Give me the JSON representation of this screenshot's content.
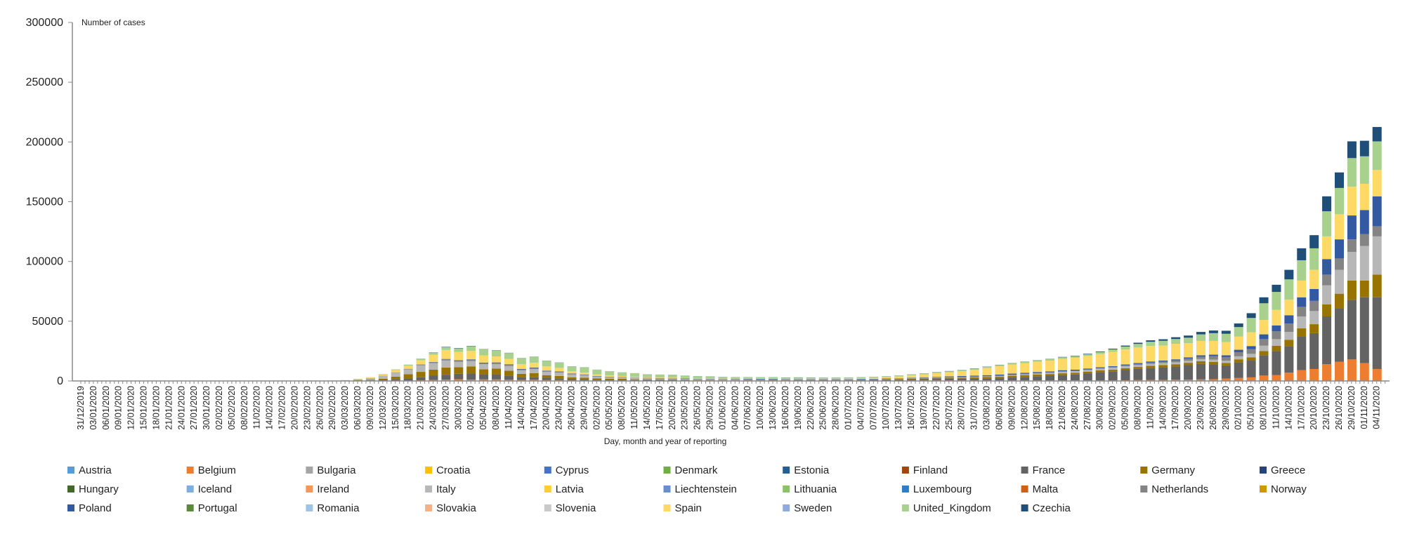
{
  "chart_data": {
    "type": "bar",
    "stacked": true,
    "ylabel": "Number of cases",
    "xlabel": "Day, month and year of reporting",
    "ylim": [
      0,
      300000
    ],
    "yticks": [
      0,
      50000,
      100000,
      150000,
      200000,
      250000,
      300000
    ],
    "grid": false,
    "legend_position": "bottom",
    "categories": [
      "31/12/2019",
      "03/01/2020",
      "06/01/2020",
      "09/01/2020",
      "12/01/2020",
      "15/01/2020",
      "18/01/2020",
      "21/01/2020",
      "24/01/2020",
      "27/01/2020",
      "30/01/2020",
      "02/02/2020",
      "05/02/2020",
      "08/02/2020",
      "11/02/2020",
      "14/02/2020",
      "17/02/2020",
      "20/02/2020",
      "23/02/2020",
      "26/02/2020",
      "29/02/2020",
      "03/03/2020",
      "06/03/2020",
      "09/03/2020",
      "12/03/2020",
      "15/03/2020",
      "18/03/2020",
      "21/03/2020",
      "24/03/2020",
      "27/03/2020",
      "30/03/2020",
      "02/04/2020",
      "05/04/2020",
      "08/04/2020",
      "11/04/2020",
      "14/04/2020",
      "17/04/2020",
      "20/04/2020",
      "23/04/2020",
      "26/04/2020",
      "29/04/2020",
      "02/05/2020",
      "05/05/2020",
      "08/05/2020",
      "11/05/2020",
      "14/05/2020",
      "17/05/2020",
      "20/05/2020",
      "23/05/2020",
      "26/05/2020",
      "29/05/2020",
      "01/06/2020",
      "04/06/2020",
      "07/06/2020",
      "10/06/2020",
      "13/06/2020",
      "16/06/2020",
      "19/06/2020",
      "22/06/2020",
      "25/06/2020",
      "28/06/2020",
      "01/07/2020",
      "04/07/2020",
      "07/07/2020",
      "10/07/2020",
      "13/07/2020",
      "16/07/2020",
      "19/07/2020",
      "22/07/2020",
      "25/07/2020",
      "28/07/2020",
      "31/07/2020",
      "03/08/2020",
      "06/08/2020",
      "09/08/2020",
      "12/08/2020",
      "15/08/2020",
      "18/08/2020",
      "21/08/2020",
      "24/08/2020",
      "27/08/2020",
      "30/08/2020",
      "02/09/2020",
      "05/09/2020",
      "08/09/2020",
      "11/09/2020",
      "14/09/2020",
      "17/09/2020",
      "20/09/2020",
      "23/09/2020",
      "26/09/2020",
      "29/09/2020",
      "02/10/2020",
      "05/10/2020",
      "08/10/2020",
      "11/10/2020",
      "14/10/2020",
      "17/10/2020",
      "20/10/2020",
      "23/10/2020",
      "26/10/2020",
      "29/10/2020",
      "01/11/2020",
      "04/11/2020"
    ],
    "legend": [
      {
        "name": "Austria",
        "color": "#5B9BD5"
      },
      {
        "name": "Belgium",
        "color": "#ED7D31"
      },
      {
        "name": "Bulgaria",
        "color": "#A5A5A5"
      },
      {
        "name": "Croatia",
        "color": "#FFC000"
      },
      {
        "name": "Cyprus",
        "color": "#4472C4"
      },
      {
        "name": "Denmark",
        "color": "#70AD47"
      },
      {
        "name": "Estonia",
        "color": "#255E91"
      },
      {
        "name": "Finland",
        "color": "#9E480E"
      },
      {
        "name": "France",
        "color": "#636363"
      },
      {
        "name": "Germany",
        "color": "#997300"
      },
      {
        "name": "Greece",
        "color": "#264478"
      },
      {
        "name": "Hungary",
        "color": "#43682B"
      },
      {
        "name": "Iceland",
        "color": "#7CAFDD"
      },
      {
        "name": "Ireland",
        "color": "#F1975A"
      },
      {
        "name": "Italy",
        "color": "#B7B7B7"
      },
      {
        "name": "Latvia",
        "color": "#FFCD33"
      },
      {
        "name": "Liechtenstein",
        "color": "#698ED0"
      },
      {
        "name": "Lithuania",
        "color": "#8CC168"
      },
      {
        "name": "Luxembourg",
        "color": "#327DC2"
      },
      {
        "name": "Malta",
        "color": "#D26012"
      },
      {
        "name": "Netherlands",
        "color": "#848484"
      },
      {
        "name": "Norway",
        "color": "#CC9A00"
      },
      {
        "name": "Poland",
        "color": "#335AA1"
      },
      {
        "name": "Portugal",
        "color": "#5A8A39"
      },
      {
        "name": "Romania",
        "color": "#9DC3E6"
      },
      {
        "name": "Slovakia",
        "color": "#F4B183"
      },
      {
        "name": "Slovenia",
        "color": "#C9C9C9"
      },
      {
        "name": "Spain",
        "color": "#FFD966"
      },
      {
        "name": "Sweden",
        "color": "#8FAADC"
      },
      {
        "name": "United_Kingdom",
        "color": "#A9D18E"
      },
      {
        "name": "Czechia",
        "color": "#1F4E79"
      }
    ],
    "series": [
      {
        "name": "Belgium",
        "values": [
          0,
          0,
          0,
          0,
          0,
          0,
          0,
          0,
          0,
          0,
          0,
          0,
          0,
          0,
          0,
          0,
          0,
          0,
          0,
          0,
          0,
          0,
          0,
          0,
          100,
          200,
          300,
          600,
          900,
          1200,
          1500,
          1200,
          1300,
          1300,
          1000,
          900,
          1000,
          700,
          700,
          500,
          400,
          300,
          300,
          250,
          200,
          200,
          150,
          150,
          150,
          150,
          150,
          100,
          100,
          100,
          100,
          100,
          100,
          100,
          100,
          100,
          100,
          150,
          150,
          200,
          250,
          300,
          400,
          500,
          500,
          500,
          500,
          500,
          450,
          450,
          400,
          400,
          400,
          400,
          400,
          400,
          400,
          400,
          500,
          600,
          700,
          800,
          900,
          1000,
          1200,
          1300,
          1500,
          2000,
          2500,
          3000,
          4500,
          5000,
          7000,
          9000,
          10000,
          14000,
          16000,
          18000,
          15000,
          10000
        ]
      },
      {
        "name": "France",
        "values": [
          0,
          0,
          0,
          0,
          0,
          0,
          0,
          0,
          0,
          0,
          0,
          0,
          0,
          0,
          0,
          0,
          0,
          0,
          0,
          0,
          0,
          50,
          300,
          400,
          800,
          1400,
          1800,
          2500,
          3500,
          4000,
          4500,
          5000,
          4000,
          4000,
          3500,
          2500,
          2000,
          2000,
          1500,
          1000,
          1000,
          800,
          800,
          600,
          500,
          400,
          400,
          400,
          400,
          300,
          300,
          300,
          400,
          400,
          400,
          400,
          400,
          500,
          500,
          500,
          500,
          500,
          600,
          600,
          700,
          800,
          1000,
          1000,
          1200,
          1300,
          1400,
          1500,
          1800,
          2000,
          2500,
          3000,
          3500,
          4000,
          4500,
          5000,
          6000,
          7000,
          7500,
          8500,
          9500,
          10000,
          10500,
          11000,
          12000,
          13000,
          12000,
          11000,
          13000,
          14000,
          17000,
          20000,
          22000,
          28000,
          30000,
          40000,
          45000,
          50000,
          55000,
          60000
        ]
      },
      {
        "name": "Germany",
        "values": [
          0,
          0,
          0,
          0,
          0,
          0,
          0,
          0,
          0,
          0,
          0,
          0,
          0,
          0,
          0,
          0,
          0,
          0,
          0,
          0,
          100,
          150,
          300,
          500,
          900,
          2000,
          3500,
          4500,
          5000,
          6000,
          5500,
          6000,
          4500,
          5000,
          4000,
          2500,
          3500,
          2000,
          2000,
          1500,
          1300,
          1000,
          800,
          900,
          700,
          700,
          600,
          600,
          500,
          400,
          400,
          400,
          300,
          400,
          500,
          600,
          500,
          400,
          400,
          400,
          400,
          400,
          400,
          400,
          500,
          500,
          600,
          700,
          800,
          900,
          900,
          1000,
          1000,
          1200,
          1400,
          1500,
          1500,
          1400,
          1500,
          1400,
          1400,
          1400,
          1500,
          1500,
          1500,
          1800,
          1900,
          2000,
          2000,
          2200,
          2500,
          2000,
          2600,
          2800,
          3500,
          4500,
          5500,
          7000,
          7500,
          10000,
          12000,
          16000,
          14000,
          19000
        ]
      },
      {
        "name": "Italy",
        "values": [
          0,
          0,
          0,
          0,
          0,
          0,
          0,
          0,
          0,
          0,
          0,
          0,
          0,
          0,
          0,
          0,
          0,
          0,
          0,
          100,
          250,
          500,
          900,
          1500,
          2500,
          3300,
          4000,
          5500,
          5500,
          5900,
          4500,
          4500,
          4300,
          3800,
          4000,
          3000,
          3500,
          3000,
          2700,
          2400,
          2000,
          1500,
          1200,
          1100,
          900,
          800,
          700,
          600,
          600,
          400,
          400,
          300,
          300,
          300,
          300,
          250,
          200,
          200,
          200,
          200,
          200,
          200,
          200,
          200,
          200,
          200,
          200,
          250,
          250,
          250,
          300,
          350,
          400,
          450,
          500,
          600,
          800,
          1000,
          1300,
          1300,
          1400,
          1500,
          1600,
          1700,
          1600,
          1800,
          1700,
          1600,
          1700,
          1800,
          1900,
          2000,
          2500,
          2900,
          4500,
          5500,
          6500,
          10000,
          11000,
          16000,
          20000,
          24000,
          29000,
          32000
        ]
      },
      {
        "name": "Netherlands",
        "values": [
          0,
          0,
          0,
          0,
          0,
          0,
          0,
          0,
          0,
          0,
          0,
          0,
          0,
          0,
          0,
          0,
          0,
          0,
          0,
          0,
          0,
          0,
          0,
          50,
          150,
          300,
          500,
          600,
          800,
          1000,
          1000,
          1000,
          900,
          1000,
          1000,
          800,
          900,
          700,
          700,
          500,
          400,
          300,
          200,
          200,
          150,
          150,
          150,
          150,
          100,
          100,
          100,
          100,
          100,
          100,
          100,
          100,
          100,
          100,
          100,
          100,
          100,
          100,
          100,
          100,
          150,
          150,
          200,
          250,
          300,
          350,
          400,
          450,
          500,
          550,
          550,
          500,
          500,
          500,
          500,
          500,
          500,
          600,
          700,
          800,
          900,
          1000,
          1200,
          1500,
          1800,
          2000,
          2800,
          3000,
          3500,
          4000,
          5500,
          6500,
          7000,
          8000,
          8500,
          9000,
          9500,
          10500,
          10000,
          8500
        ]
      },
      {
        "name": "Poland",
        "values": [
          0,
          0,
          0,
          0,
          0,
          0,
          0,
          0,
          0,
          0,
          0,
          0,
          0,
          0,
          0,
          0,
          0,
          0,
          0,
          0,
          0,
          0,
          0,
          10,
          20,
          40,
          60,
          100,
          200,
          300,
          300,
          400,
          400,
          400,
          400,
          400,
          400,
          300,
          300,
          300,
          300,
          300,
          300,
          300,
          300,
          300,
          300,
          300,
          300,
          300,
          300,
          300,
          400,
          400,
          400,
          300,
          300,
          300,
          300,
          300,
          300,
          300,
          300,
          300,
          300,
          300,
          300,
          400,
          400,
          500,
          600,
          600,
          700,
          700,
          800,
          800,
          800,
          700,
          800,
          800,
          700,
          600,
          600,
          700,
          800,
          900,
          900,
          1000,
          1000,
          1200,
          1300,
          1500,
          2000,
          2500,
          4000,
          5000,
          7000,
          8000,
          10000,
          13000,
          16000,
          20000,
          20000,
          25000
        ]
      },
      {
        "name": "Spain",
        "values": [
          0,
          0,
          0,
          0,
          0,
          0,
          0,
          0,
          0,
          0,
          0,
          0,
          0,
          0,
          0,
          0,
          0,
          0,
          0,
          0,
          0,
          50,
          200,
          500,
          1000,
          1800,
          2500,
          3500,
          6000,
          7500,
          7000,
          7000,
          6000,
          5000,
          4500,
          4000,
          4000,
          3500,
          3000,
          2000,
          1500,
          1200,
          1000,
          800,
          700,
          500,
          500,
          500,
          400,
          400,
          400,
          400,
          300,
          300,
          300,
          300,
          300,
          300,
          400,
          400,
          400,
          500,
          600,
          800,
          1000,
          1500,
          2000,
          2500,
          3000,
          3500,
          4000,
          5000,
          6000,
          7000,
          7500,
          8000,
          8500,
          9000,
          9500,
          10000,
          10500,
          11000,
          12000,
          12500,
          13000,
          13000,
          12500,
          13000,
          12000,
          12000,
          11500,
          11000,
          11000,
          11500,
          12000,
          13000,
          13000,
          14000,
          16000,
          19000,
          21000,
          24000,
          22000,
          22000
        ]
      },
      {
        "name": "United_Kingdom",
        "values": [
          0,
          0,
          0,
          0,
          0,
          0,
          0,
          0,
          0,
          0,
          0,
          0,
          0,
          0,
          0,
          0,
          0,
          0,
          0,
          0,
          0,
          0,
          50,
          150,
          300,
          600,
          900,
          1200,
          1800,
          2500,
          3000,
          4000,
          5000,
          5000,
          5000,
          5000,
          5000,
          4700,
          4500,
          4000,
          4500,
          4000,
          3500,
          3000,
          3000,
          2500,
          2500,
          2500,
          2000,
          2000,
          1800,
          1500,
          1300,
          1200,
          1000,
          1000,
          900,
          900,
          800,
          800,
          800,
          700,
          700,
          700,
          700,
          700,
          700,
          700,
          800,
          800,
          800,
          900,
          900,
          1000,
          1000,
          1100,
          1100,
          1200,
          1300,
          1400,
          1500,
          1700,
          2000,
          2500,
          3000,
          3500,
          4000,
          4000,
          4500,
          5500,
          6500,
          7000,
          8000,
          12000,
          14000,
          15000,
          17000,
          17000,
          18000,
          21000,
          22000,
          24000,
          23000,
          24000
        ]
      },
      {
        "name": "Czechia",
        "values": [
          0,
          0,
          0,
          0,
          0,
          0,
          0,
          0,
          0,
          0,
          0,
          0,
          0,
          0,
          0,
          0,
          0,
          0,
          0,
          0,
          0,
          0,
          0,
          0,
          10,
          30,
          60,
          100,
          200,
          250,
          250,
          250,
          200,
          200,
          150,
          100,
          100,
          100,
          100,
          80,
          80,
          50,
          50,
          50,
          50,
          50,
          50,
          50,
          50,
          50,
          50,
          50,
          50,
          50,
          80,
          100,
          150,
          200,
          150,
          100,
          100,
          100,
          100,
          100,
          100,
          100,
          100,
          100,
          150,
          200,
          200,
          200,
          200,
          200,
          200,
          200,
          200,
          200,
          300,
          300,
          400,
          500,
          600,
          800,
          1000,
          1200,
          1300,
          1500,
          1800,
          2000,
          2200,
          2500,
          3000,
          4000,
          5000,
          6000,
          8000,
          10000,
          11000,
          12500,
          13000,
          14000,
          13000,
          12000
        ]
      }
    ]
  }
}
